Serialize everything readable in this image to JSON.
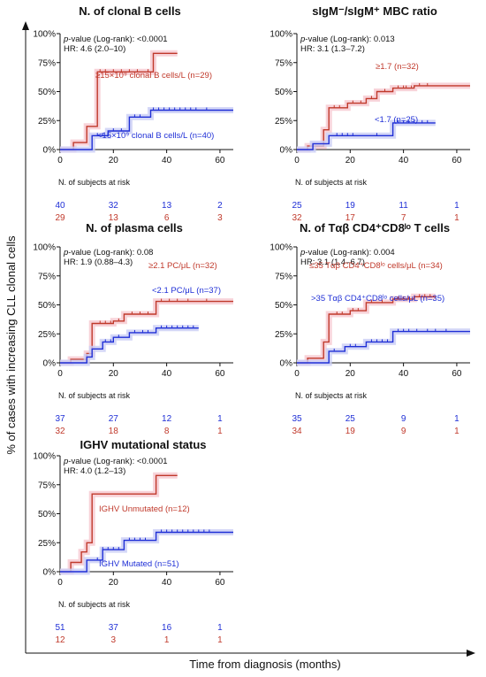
{
  "figure": {
    "ylabel": "% of cases with increasing CLL clonal cells",
    "xlabel": "Time from diagnosis (months)",
    "risk_table_title": "N. of subjects at risk"
  },
  "colors": {
    "group_a": "#c0392b",
    "group_b": "#1f2fd6",
    "band_a": "#f6c8d0",
    "band_b": "#c9cdf5",
    "axis": "#111111"
  },
  "chart_data": [
    {
      "type": "line",
      "title": "N. of clonal B cells",
      "title_html": [
        "N. of clonal B cells"
      ],
      "stats": {
        "pvalue": "-value (Log-rank): <0.0001",
        "hr": "HR: 4.6 (2.0–10)"
      },
      "xlim": [
        0,
        65
      ],
      "ylim": [
        0,
        100
      ],
      "xticks": [
        0,
        20,
        40,
        60
      ],
      "yticks": [
        "0%",
        "25%",
        "50%",
        "75%",
        "100%"
      ],
      "series": [
        {
          "name": "≥15×10⁹ clonal B cells/L (n=29)",
          "color": "red",
          "steps": [
            [
              0,
              0
            ],
            [
              5,
              0
            ],
            [
              5,
              6
            ],
            [
              10,
              6
            ],
            [
              10,
              20
            ],
            [
              14,
              20
            ],
            [
              14,
              67
            ],
            [
              35,
              67
            ],
            [
              35,
              83
            ],
            [
              44,
              83
            ]
          ],
          "censor": [
            15,
            17,
            20,
            23,
            26,
            29,
            33
          ]
        },
        {
          "name": "<15×10⁹ clonal B cells/L (n=40)",
          "color": "blue",
          "steps": [
            [
              0,
              0
            ],
            [
              12,
              0
            ],
            [
              12,
              12
            ],
            [
              18,
              12
            ],
            [
              18,
              16
            ],
            [
              26,
              16
            ],
            [
              26,
              28
            ],
            [
              34,
              28
            ],
            [
              34,
              34
            ],
            [
              65,
              34
            ]
          ],
          "censor": [
            14,
            16,
            20,
            23,
            28,
            30,
            35,
            37,
            39,
            41,
            43,
            45,
            47,
            49,
            51,
            55
          ]
        }
      ],
      "risk": {
        "times": [
          "0",
          "20",
          "40",
          "60"
        ],
        "group_b": [
          "40",
          "32",
          "13",
          "2"
        ],
        "group_a": [
          "29",
          "13",
          "6",
          "3"
        ]
      }
    },
    {
      "type": "line",
      "title": "sIgM⁻/sIgM⁺ MBC ratio",
      "stats": {
        "pvalue": "-value (Log-rank): 0.013",
        "hr": "HR: 3.1 (1.3–7.2)"
      },
      "xlim": [
        0,
        65
      ],
      "ylim": [
        0,
        100
      ],
      "xticks": [
        0,
        20,
        40,
        60
      ],
      "yticks": [
        "0%",
        "25%",
        "50%",
        "75%",
        "100%"
      ],
      "series": [
        {
          "name": "≥1.7 (n=32)",
          "color": "red",
          "steps": [
            [
              0,
              0
            ],
            [
              4,
              0
            ],
            [
              4,
              3
            ],
            [
              10,
              3
            ],
            [
              10,
              17
            ],
            [
              12,
              17
            ],
            [
              12,
              36
            ],
            [
              19,
              36
            ],
            [
              19,
              40
            ],
            [
              26,
              40
            ],
            [
              26,
              44
            ],
            [
              30,
              44
            ],
            [
              30,
              50
            ],
            [
              36,
              50
            ],
            [
              36,
              53
            ],
            [
              44,
              53
            ],
            [
              44,
              55
            ],
            [
              65,
              55
            ]
          ],
          "censor": [
            14,
            16,
            21,
            24,
            28,
            33,
            38,
            40,
            41,
            43,
            46,
            49
          ]
        },
        {
          "name": "<1.7 (n=25)",
          "color": "blue",
          "steps": [
            [
              0,
              0
            ],
            [
              6,
              0
            ],
            [
              6,
              5
            ],
            [
              12,
              5
            ],
            [
              12,
              12
            ],
            [
              36,
              12
            ],
            [
              36,
              23
            ],
            [
              52,
              23
            ]
          ],
          "censor": [
            15,
            17,
            19,
            21,
            30,
            38,
            40,
            42,
            44,
            47,
            49
          ]
        }
      ],
      "risk": {
        "times": [
          "0",
          "20",
          "40",
          "60"
        ],
        "group_b": [
          "25",
          "19",
          "11",
          "1"
        ],
        "group_a": [
          "32",
          "17",
          "7",
          "1"
        ]
      }
    },
    {
      "type": "line",
      "title": "N. of plasma cells",
      "stats": {
        "pvalue": "-value (Log-rank): 0.08",
        "hr": "HR: 1.9 (0.88–4.3)"
      },
      "xlim": [
        0,
        65
      ],
      "ylim": [
        0,
        100
      ],
      "xticks": [
        0,
        20,
        40,
        60
      ],
      "yticks": [
        "0%",
        "25%",
        "50%",
        "75%",
        "100%"
      ],
      "series": [
        {
          "name": "≥2.1 PC/μL (n=32)",
          "color": "red",
          "steps": [
            [
              0,
              0
            ],
            [
              4,
              0
            ],
            [
              4,
              3
            ],
            [
              10,
              3
            ],
            [
              10,
              8
            ],
            [
              12,
              8
            ],
            [
              12,
              34
            ],
            [
              20,
              34
            ],
            [
              20,
              36
            ],
            [
              24,
              36
            ],
            [
              24,
              42
            ],
            [
              36,
              42
            ],
            [
              36,
              53
            ],
            [
              65,
              53
            ]
          ],
          "censor": [
            15,
            17,
            19,
            22,
            27,
            30,
            33,
            38,
            41,
            44,
            48,
            55
          ]
        },
        {
          "name": "<2.1 PC/μL (n=37)",
          "color": "blue",
          "steps": [
            [
              0,
              0
            ],
            [
              10,
              0
            ],
            [
              10,
              5
            ],
            [
              12,
              5
            ],
            [
              12,
              12
            ],
            [
              16,
              12
            ],
            [
              16,
              18
            ],
            [
              20,
              18
            ],
            [
              20,
              22
            ],
            [
              26,
              22
            ],
            [
              26,
              26
            ],
            [
              36,
              26
            ],
            [
              36,
              30
            ],
            [
              52,
              30
            ]
          ],
          "censor": [
            17,
            19,
            22,
            28,
            31,
            33,
            38,
            40,
            42,
            44,
            46,
            48,
            50
          ]
        }
      ],
      "risk": {
        "times": [
          "0",
          "20",
          "40",
          "60"
        ],
        "group_b": [
          "37",
          "27",
          "12",
          "1"
        ],
        "group_a": [
          "32",
          "18",
          "8",
          "1"
        ]
      }
    },
    {
      "type": "line",
      "title": "N. of Tαβ CD4⁺CD8ˡᵒ T cells",
      "stats": {
        "pvalue": "-value (Log-rank): 0.004",
        "hr": "HR: 3.1 (1.4–6.7)"
      },
      "xlim": [
        0,
        65
      ],
      "ylim": [
        0,
        100
      ],
      "xticks": [
        0,
        20,
        40,
        60
      ],
      "yticks": [
        "0%",
        "25%",
        "50%",
        "75%",
        "100%"
      ],
      "series": [
        {
          "name": "≤35 Tαβ CD4⁺CD8ˡᵒ cells/μL (n=34)",
          "color": "red",
          "steps": [
            [
              0,
              0
            ],
            [
              4,
              0
            ],
            [
              4,
              4
            ],
            [
              10,
              4
            ],
            [
              10,
              18
            ],
            [
              12,
              18
            ],
            [
              12,
              42
            ],
            [
              20,
              42
            ],
            [
              20,
              45
            ],
            [
              26,
              45
            ],
            [
              26,
              52
            ],
            [
              36,
              52
            ],
            [
              36,
              55
            ],
            [
              44,
              55
            ],
            [
              44,
              57
            ],
            [
              52,
              57
            ]
          ],
          "censor": [
            15,
            17,
            21,
            23,
            28,
            32,
            38,
            40,
            42,
            46,
            48,
            50
          ]
        },
        {
          "name": ">35 Tαβ CD4⁺CD8ˡᵒ cells/μL (n=35)",
          "color": "blue",
          "steps": [
            [
              0,
              0
            ],
            [
              12,
              0
            ],
            [
              12,
              10
            ],
            [
              18,
              10
            ],
            [
              18,
              14
            ],
            [
              26,
              14
            ],
            [
              26,
              18
            ],
            [
              36,
              18
            ],
            [
              36,
              27
            ],
            [
              65,
              27
            ]
          ],
          "censor": [
            14,
            20,
            22,
            28,
            30,
            32,
            34,
            38,
            40,
            42,
            45,
            49,
            52,
            56
          ]
        }
      ],
      "risk": {
        "times": [
          "0",
          "20",
          "40",
          "60"
        ],
        "group_b": [
          "35",
          "25",
          "9",
          "1"
        ],
        "group_a": [
          "34",
          "19",
          "9",
          "1"
        ]
      }
    },
    {
      "type": "line",
      "title": "IGHV mutational status",
      "stats": {
        "pvalue": "-value (Log-rank): <0.0001",
        "hr": "HR: 4.0 (1.2–13)"
      },
      "xlim": [
        0,
        65
      ],
      "ylim": [
        0,
        100
      ],
      "xticks": [
        0,
        20,
        40,
        60
      ],
      "yticks": [
        "0%",
        "25%",
        "50%",
        "75%",
        "100%"
      ],
      "series": [
        {
          "name": "IGHV Unmutated (n=12)",
          "color": "red",
          "steps": [
            [
              0,
              0
            ],
            [
              4,
              0
            ],
            [
              4,
              8
            ],
            [
              8,
              8
            ],
            [
              8,
              17
            ],
            [
              10,
              17
            ],
            [
              10,
              25
            ],
            [
              12,
              25
            ],
            [
              12,
              67
            ],
            [
              36,
              67
            ],
            [
              36,
              83
            ],
            [
              44,
              83
            ]
          ],
          "censor": []
        },
        {
          "name": "IGHV Mutated (n=51)",
          "color": "blue",
          "steps": [
            [
              0,
              0
            ],
            [
              10,
              0
            ],
            [
              10,
              10
            ],
            [
              16,
              10
            ],
            [
              16,
              19
            ],
            [
              24,
              19
            ],
            [
              24,
              27
            ],
            [
              36,
              27
            ],
            [
              36,
              34
            ],
            [
              65,
              34
            ]
          ],
          "censor": [
            14,
            16,
            18,
            20,
            22,
            26,
            28,
            30,
            32,
            38,
            40,
            42,
            44,
            46,
            48,
            50,
            52,
            54,
            56
          ]
        }
      ],
      "risk": {
        "times": [
          "0",
          "20",
          "40",
          "60"
        ],
        "group_b": [
          "51",
          "37",
          "16",
          "1"
        ],
        "group_a": [
          "12",
          "3",
          "1",
          "1"
        ]
      }
    }
  ]
}
